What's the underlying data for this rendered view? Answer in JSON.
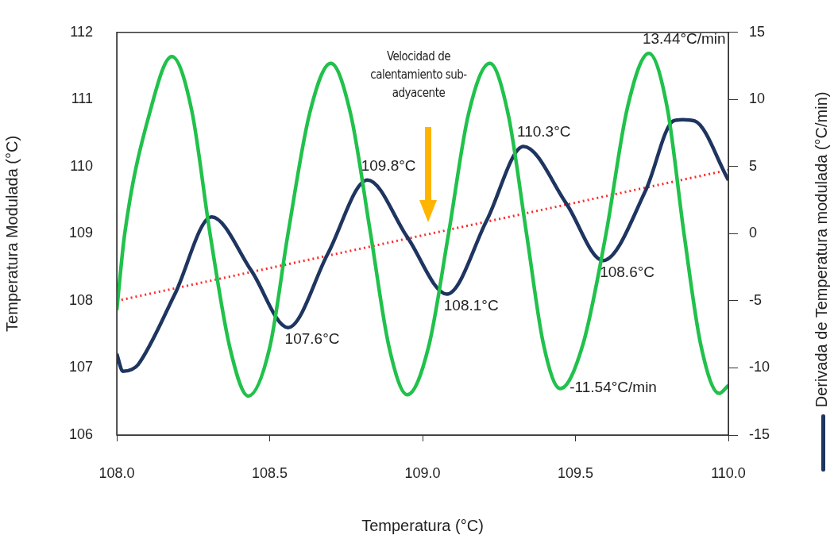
{
  "chart_data": {
    "type": "line",
    "xlabel": "Temperatura (°C)",
    "ylabel": "Temperatura Modulada (°C)",
    "y2label": "Derivada de Temperatura modulada (°C/min)",
    "xlim": [
      108,
      110
    ],
    "xticks": [
      {
        "value": 108,
        "label": "108.0"
      },
      {
        "value": 108.5,
        "label": "108.5"
      },
      {
        "value": 109,
        "label": "109.0"
      },
      {
        "value": 109.5,
        "label": "109.5"
      },
      {
        "value": 110,
        "label": "110.0"
      }
    ],
    "ylim": [
      106,
      112
    ],
    "yticks": [
      106,
      107,
      108,
      109,
      110,
      111,
      112
    ],
    "y2lim": [
      -15,
      15
    ],
    "y2ticks": [
      -15,
      -10,
      -5,
      0,
      5,
      10,
      15
    ],
    "grid": false,
    "legend": false,
    "marker": "none",
    "series": [
      {
        "color": "#21c14b",
        "axis": "y2",
        "x": [
          108.0,
          108.026,
          108.11,
          108.18,
          108.245,
          108.305,
          108.37,
          108.43,
          108.5,
          108.56,
          108.63,
          108.7,
          108.765,
          108.83,
          108.89,
          108.95,
          109.02,
          109.085,
          109.15,
          109.22,
          109.28,
          109.34,
          109.395,
          109.45,
          109.525,
          109.6,
          109.67,
          109.74,
          109.8,
          109.855,
          109.91,
          109.97,
          110.0
        ],
        "values": [
          -5.7,
          0,
          9.2,
          13.2,
          9.2,
          0,
          -8.5,
          -12.1,
          -8.5,
          0,
          8.9,
          12.7,
          8.9,
          0,
          -8.4,
          -12.0,
          -8.4,
          0,
          8.9,
          12.7,
          8.9,
          0,
          -8.2,
          -11.54,
          -8.2,
          0,
          9.4,
          13.44,
          9.4,
          0,
          -8.3,
          -11.9,
          -11.3
        ]
      },
      {
        "color": "#1e3560",
        "x": [
          108.0,
          108.02,
          108.05,
          108.07,
          108.19,
          108.31,
          108.44,
          108.56,
          108.69,
          108.82,
          108.95,
          109.08,
          109.21,
          109.33,
          109.47,
          109.59,
          109.73,
          109.82,
          109.85,
          109.89,
          110.0
        ],
        "values": [
          107.21,
          106.95,
          106.98,
          107.05,
          108.1,
          109.25,
          108.45,
          107.6,
          108.7,
          109.8,
          108.95,
          108.1,
          109.2,
          110.3,
          109.45,
          108.6,
          109.65,
          110.68,
          110.7,
          110.68,
          109.8
        ]
      },
      {
        "color": "#ff2a2a",
        "line_style": "dotted",
        "x": [
          108.0,
          110.0
        ],
        "values": [
          108.0,
          109.95
        ]
      }
    ],
    "annotations": [
      {
        "text": "107.6°C",
        "x": 108.56,
        "y": 107.6
      },
      {
        "text": "109.8°C",
        "x": 108.82,
        "y": 109.8
      },
      {
        "text": "108.1°C",
        "x": 109.08,
        "y": 108.1
      },
      {
        "text": "110.3°C",
        "x": 109.33,
        "y": 110.3
      },
      {
        "text": "108.6°C",
        "x": 109.59,
        "y": 108.6
      },
      {
        "text": "13.44°C/min",
        "x": 109.74,
        "y": 111.688
      },
      {
        "text": "-11.54°C/min",
        "x": 109.45,
        "y": 106.692
      },
      "Velocidad de calentamiento sub-adyacente"
    ]
  }
}
